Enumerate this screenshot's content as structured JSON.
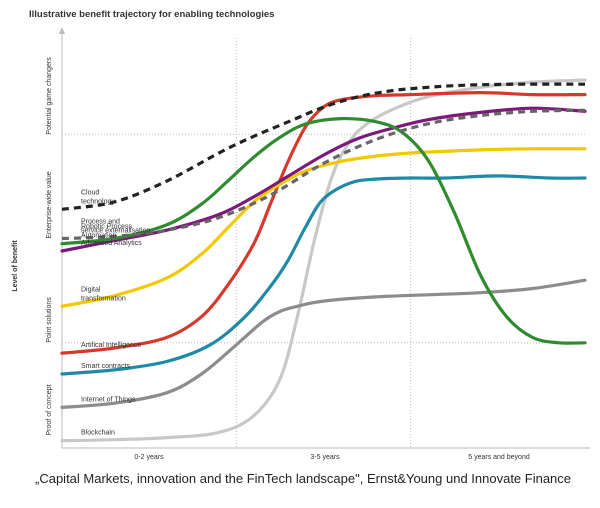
{
  "chart_data": {
    "type": "line",
    "title": "Illustrative benefit trajectory for enabling technologies",
    "ylabel": "Level of benefit",
    "y_levels": [
      "Proof of concept",
      "Point solutions",
      "Enterprise-wide value",
      "Potential game changers"
    ],
    "x_periods": [
      "0-2 years",
      "3-5 years",
      "5 years and beyond"
    ],
    "xlim": [
      0,
      3
    ],
    "ylim": [
      0,
      4
    ],
    "colors": {
      "cloud": "#222222",
      "process": "#666666",
      "rpa": "#2e8b2e",
      "analytics": "#7b1a7b",
      "digital": "#f2c800",
      "ai": "#d6392b",
      "smart": "#1f8aa6",
      "iot": "#8c8c8c",
      "blockchain": "#c8c8c8"
    },
    "series": [
      {
        "key": "blockchain",
        "name": "Blockchain",
        "color": "#c8c8c8",
        "dash": false,
        "x": [
          0,
          0.3,
          0.6,
          0.9,
          1.1,
          1.25,
          1.35,
          1.45,
          1.55,
          1.65,
          1.75,
          1.9,
          2.1,
          2.4,
          2.7,
          3.0
        ],
        "y": [
          0.06,
          0.07,
          0.09,
          0.14,
          0.3,
          0.65,
          1.25,
          2.0,
          2.6,
          2.93,
          3.1,
          3.24,
          3.36,
          3.45,
          3.5,
          3.52
        ]
      },
      {
        "key": "iot",
        "name": "Internet of Things",
        "color": "#8c8c8c",
        "dash": false,
        "x": [
          0,
          0.3,
          0.6,
          0.8,
          1.0,
          1.15,
          1.25,
          1.35,
          1.5,
          1.8,
          2.1,
          2.4,
          2.7,
          3.0
        ],
        "y": [
          0.38,
          0.42,
          0.52,
          0.7,
          0.98,
          1.2,
          1.3,
          1.35,
          1.4,
          1.44,
          1.46,
          1.48,
          1.52,
          1.6
        ]
      },
      {
        "key": "smart",
        "name": "Smart contracts",
        "color": "#1f8aa6",
        "dash": false,
        "x": [
          0,
          0.3,
          0.6,
          0.85,
          1.05,
          1.2,
          1.3,
          1.4,
          1.5,
          1.65,
          1.8,
          2.0,
          2.2,
          2.5,
          2.8,
          3.0
        ],
        "y": [
          0.7,
          0.74,
          0.82,
          0.98,
          1.25,
          1.55,
          1.8,
          2.12,
          2.38,
          2.53,
          2.57,
          2.58,
          2.58,
          2.6,
          2.58,
          2.58
        ]
      },
      {
        "key": "ai",
        "name": "Artifical Intelligence",
        "color": "#d6392b",
        "dash": false,
        "x": [
          0,
          0.3,
          0.6,
          0.8,
          0.95,
          1.1,
          1.2,
          1.3,
          1.4,
          1.5,
          1.6,
          1.8,
          2.0,
          2.4,
          2.7,
          3.0
        ],
        "y": [
          0.9,
          0.95,
          1.05,
          1.25,
          1.55,
          1.95,
          2.35,
          2.75,
          3.08,
          3.26,
          3.33,
          3.37,
          3.38,
          3.4,
          3.38,
          3.38
        ]
      },
      {
        "key": "digital",
        "name": "Digital transformation",
        "color": "#f2c800",
        "dash": false,
        "x": [
          0,
          0.3,
          0.6,
          0.8,
          0.95,
          1.1,
          1.25,
          1.4,
          1.6,
          1.8,
          2.0,
          2.4,
          2.7,
          3.0
        ],
        "y": [
          1.35,
          1.45,
          1.62,
          1.85,
          2.1,
          2.35,
          2.52,
          2.65,
          2.74,
          2.79,
          2.82,
          2.85,
          2.86,
          2.86
        ]
      },
      {
        "key": "analytics",
        "name": "Advanced Analytics",
        "color": "#7b1a7b",
        "dash": false,
        "x": [
          0,
          0.3,
          0.6,
          0.9,
          1.1,
          1.3,
          1.5,
          1.7,
          1.9,
          2.1,
          2.4,
          2.7,
          3.0
        ],
        "y": [
          1.88,
          1.98,
          2.08,
          2.23,
          2.4,
          2.6,
          2.8,
          2.96,
          3.06,
          3.14,
          3.21,
          3.25,
          3.22
        ]
      },
      {
        "key": "rpa",
        "name": "Robotic Process Automation",
        "color": "#2e8b2e",
        "dash": false,
        "x": [
          0,
          0.3,
          0.6,
          0.8,
          0.95,
          1.1,
          1.25,
          1.4,
          1.6,
          1.8,
          1.95,
          2.1,
          2.25,
          2.4,
          2.55,
          2.7,
          2.85,
          3.0
        ],
        "y": [
          1.95,
          2.0,
          2.13,
          2.33,
          2.55,
          2.78,
          2.97,
          3.1,
          3.15,
          3.12,
          3.02,
          2.75,
          2.25,
          1.65,
          1.25,
          1.05,
          1.0,
          1.0
        ]
      },
      {
        "key": "process",
        "name": "Process and service externalisation",
        "color": "#666666",
        "dash": true,
        "x": [
          0,
          0.3,
          0.6,
          0.9,
          1.2,
          1.5,
          1.8,
          2.1,
          2.4,
          2.7,
          3.0
        ],
        "y": [
          2.0,
          2.02,
          2.08,
          2.2,
          2.42,
          2.72,
          2.95,
          3.1,
          3.18,
          3.22,
          3.23
        ]
      },
      {
        "key": "cloud",
        "name": "Cloud technology",
        "color": "#222222",
        "dash": true,
        "x": [
          0,
          0.3,
          0.6,
          0.9,
          1.1,
          1.3,
          1.5,
          1.7,
          1.9,
          2.1,
          2.3,
          2.6,
          3.0
        ],
        "y": [
          2.28,
          2.35,
          2.55,
          2.82,
          2.98,
          3.12,
          3.26,
          3.36,
          3.42,
          3.45,
          3.47,
          3.48,
          3.48
        ]
      }
    ],
    "label_order": [
      "cloud",
      "process",
      "rpa",
      "analytics",
      "digital",
      "ai",
      "smart",
      "iot",
      "blockchain"
    ],
    "labels": {
      "cloud": [
        "Cloud",
        "technology"
      ],
      "process": [
        "Process and",
        "service externalisation"
      ],
      "rpa": [
        "Robotic Process",
        "Automation"
      ],
      "analytics": [
        "Advanced Analytics"
      ],
      "digital": [
        "Digital",
        "transformation"
      ],
      "ai": [
        "Artifical Intelligence"
      ],
      "smart": [
        "Smart contracts"
      ],
      "iot": [
        "Internet of Things"
      ],
      "blockchain": [
        "Blockchain"
      ]
    }
  },
  "caption": "„Capital Markets, innovation and the FinTech landscape\",  Ernst&Young und Innovate Finance"
}
